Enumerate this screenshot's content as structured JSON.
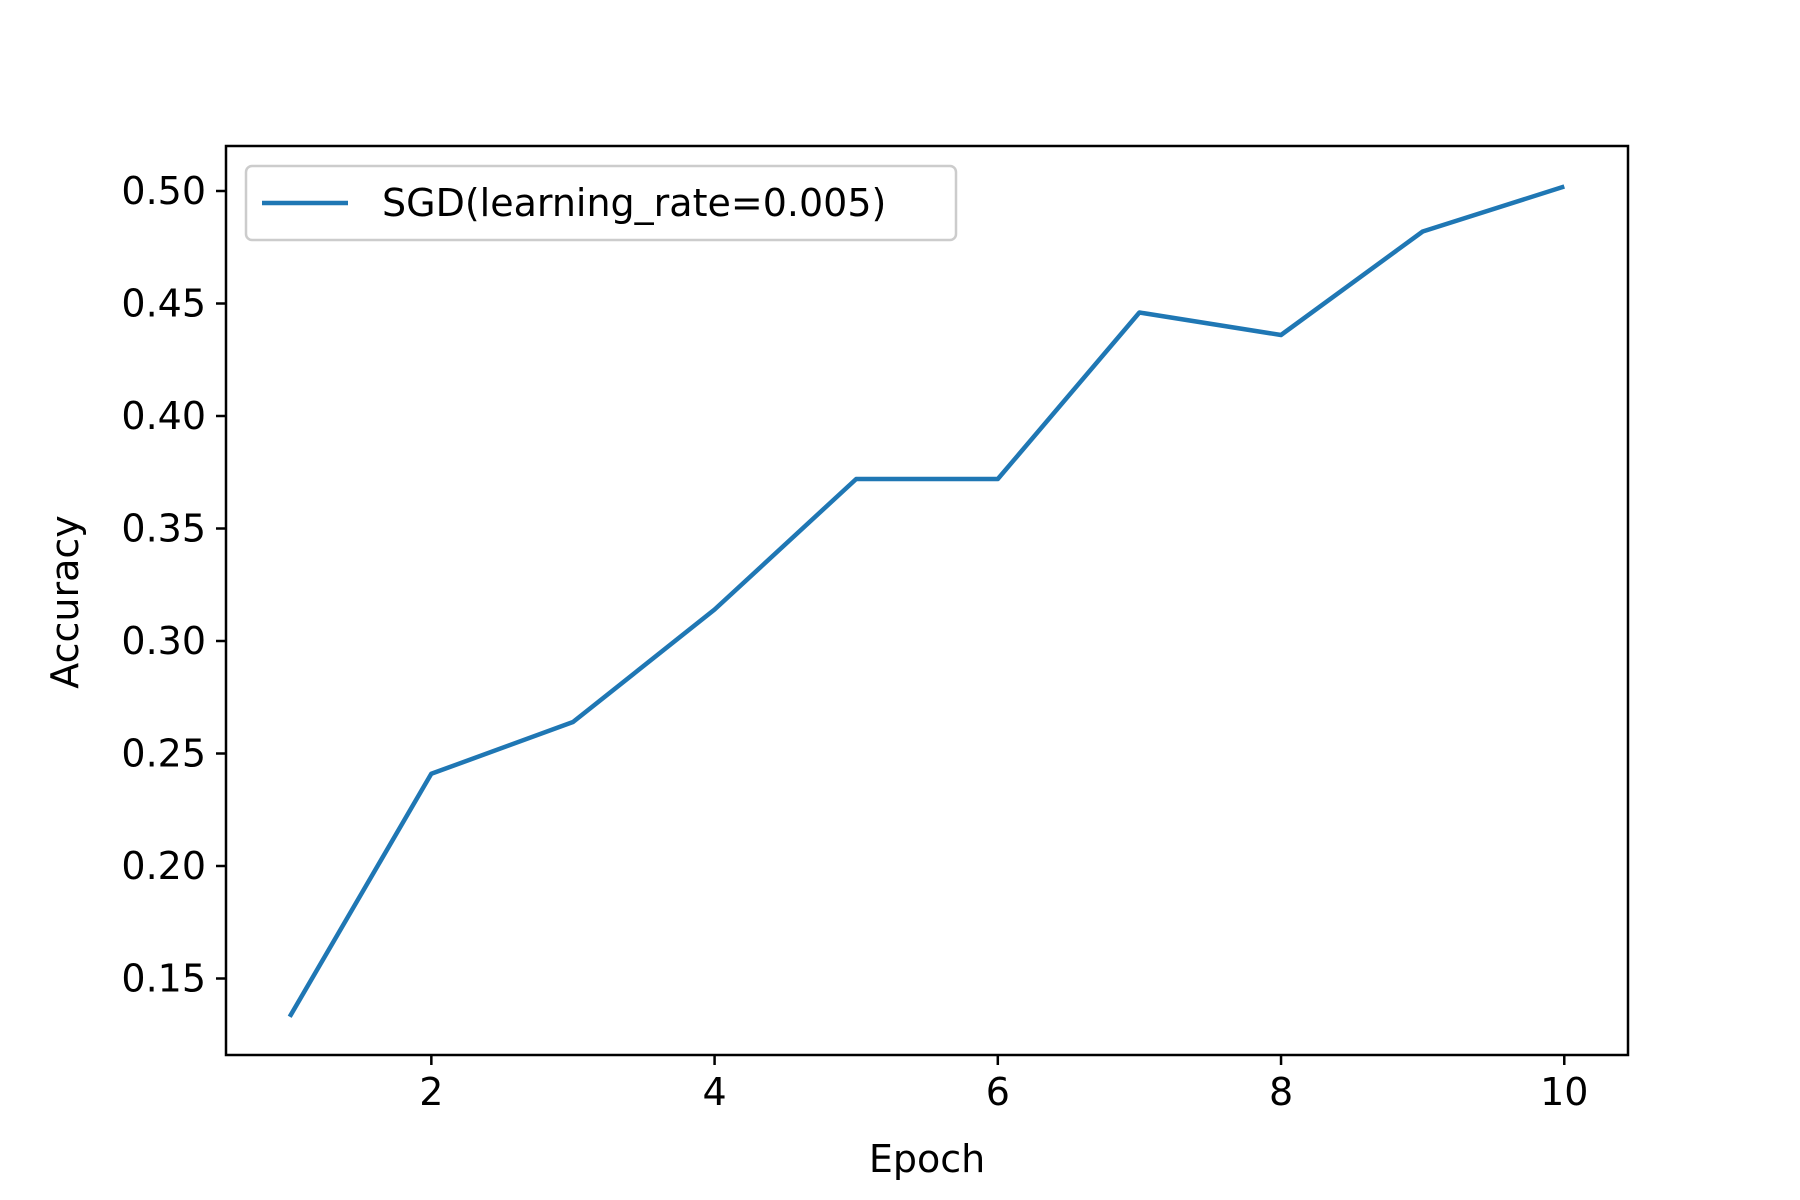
{
  "chart_data": {
    "type": "line",
    "title": "",
    "xlabel": "Epoch",
    "ylabel": "Accuracy",
    "x": [
      1,
      2,
      3,
      4,
      5,
      6,
      7,
      8,
      9,
      10
    ],
    "series": [
      {
        "name": "SGD(learning_rate=0.005)",
        "color": "#1f77b4",
        "values": [
          0.133,
          0.241,
          0.264,
          0.314,
          0.372,
          0.372,
          0.446,
          0.436,
          0.482,
          0.502
        ]
      }
    ],
    "xlim": [
      0.55,
      10.45
    ],
    "ylim": [
      0.116,
      0.52
    ],
    "xticks": [
      2,
      4,
      6,
      8,
      10
    ],
    "xtick_labels": [
      "2",
      "4",
      "6",
      "8",
      "10"
    ],
    "yticks": [
      0.15,
      0.2,
      0.25,
      0.3,
      0.35,
      0.4,
      0.45,
      0.5
    ],
    "ytick_labels": [
      "0.15",
      "0.20",
      "0.25",
      "0.30",
      "0.35",
      "0.40",
      "0.45",
      "0.50"
    ],
    "grid": false,
    "legend_position": "top-left"
  }
}
